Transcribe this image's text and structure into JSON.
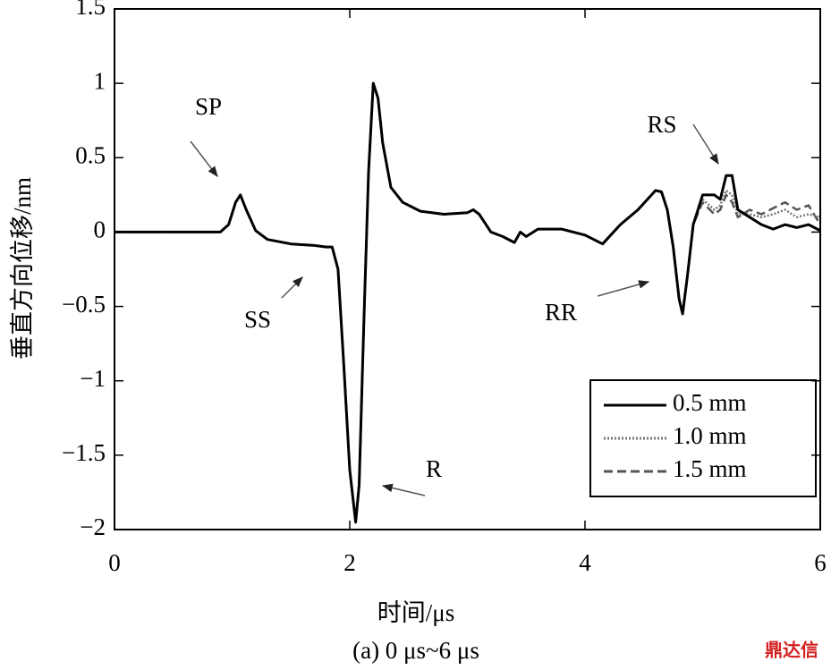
{
  "chart_data": {
    "type": "line",
    "xlabel": "时间/μs",
    "ylabel": "垂直方向位移/nm",
    "caption": "(a) 0 μs~6 μs",
    "watermark": "鼎达信",
    "x": [
      0,
      0.5,
      0.9,
      0.97,
      1.03,
      1.07,
      1.12,
      1.2,
      1.3,
      1.5,
      1.7,
      1.8,
      1.85,
      1.9,
      1.95,
      2.0,
      2.05,
      2.08,
      2.12,
      2.16,
      2.2,
      2.24,
      2.28,
      2.35,
      2.45,
      2.6,
      2.8,
      3.0,
      3.05,
      3.1,
      3.2,
      3.3,
      3.4,
      3.45,
      3.5,
      3.6,
      3.8,
      4.0,
      4.15,
      4.3,
      4.45,
      4.6,
      4.65,
      4.7,
      4.75,
      4.8,
      4.83,
      4.87,
      4.92,
      5.0,
      5.1,
      5.15,
      5.2,
      5.25,
      5.3,
      5.4,
      5.5,
      5.6,
      5.7,
      5.8,
      5.9,
      6.0
    ],
    "series": [
      {
        "name": "0.5 mm",
        "color": "#000000",
        "style": "solid",
        "values": [
          0,
          0,
          0,
          0.05,
          0.2,
          0.25,
          0.15,
          0.01,
          -0.05,
          -0.08,
          -0.09,
          -0.1,
          -0.1,
          -0.25,
          -0.9,
          -1.6,
          -1.95,
          -1.7,
          -0.6,
          0.4,
          1.0,
          0.9,
          0.6,
          0.3,
          0.2,
          0.14,
          0.12,
          0.13,
          0.15,
          0.12,
          0,
          -0.03,
          -0.07,
          0,
          -0.03,
          0.02,
          0.02,
          -0.02,
          -0.08,
          0.05,
          0.15,
          0.28,
          0.27,
          0.15,
          -0.1,
          -0.45,
          -0.55,
          -0.3,
          0.05,
          0.25,
          0.25,
          0.22,
          0.38,
          0.38,
          0.15,
          0.1,
          0.05,
          0.02,
          0.05,
          0.03,
          0.05,
          0.01
        ]
      },
      {
        "name": "1.0 mm",
        "color": "#777777",
        "style": "dotted",
        "values": [
          0,
          0,
          0,
          0.05,
          0.2,
          0.25,
          0.15,
          0.01,
          -0.05,
          -0.08,
          -0.09,
          -0.1,
          -0.1,
          -0.25,
          -0.9,
          -1.6,
          -1.95,
          -1.7,
          -0.6,
          0.4,
          1.0,
          0.9,
          0.6,
          0.3,
          0.2,
          0.14,
          0.12,
          0.13,
          0.15,
          0.12,
          0,
          -0.03,
          -0.07,
          0,
          -0.03,
          0.02,
          0.02,
          -0.02,
          -0.08,
          0.05,
          0.15,
          0.28,
          0.27,
          0.15,
          -0.1,
          -0.45,
          -0.55,
          -0.3,
          0.05,
          0.22,
          0.15,
          0.18,
          0.28,
          0.25,
          0.12,
          0.12,
          0.1,
          0.12,
          0.15,
          0.1,
          0.12,
          0.1
        ]
      },
      {
        "name": "1.5 mm",
        "color": "#555555",
        "style": "dashed",
        "values": [
          0,
          0,
          0,
          0.05,
          0.2,
          0.25,
          0.15,
          0.01,
          -0.05,
          -0.08,
          -0.09,
          -0.1,
          -0.1,
          -0.25,
          -0.9,
          -1.6,
          -1.95,
          -1.7,
          -0.6,
          0.4,
          1.0,
          0.9,
          0.6,
          0.3,
          0.2,
          0.14,
          0.12,
          0.13,
          0.15,
          0.12,
          0,
          -0.03,
          -0.07,
          0,
          -0.03,
          0.02,
          0.02,
          -0.02,
          -0.08,
          0.05,
          0.15,
          0.28,
          0.27,
          0.15,
          -0.1,
          -0.45,
          -0.55,
          -0.3,
          0.05,
          0.2,
          0.12,
          0.15,
          0.25,
          0.2,
          0.1,
          0.15,
          0.12,
          0.16,
          0.2,
          0.15,
          0.18,
          0.05
        ]
      }
    ],
    "xlim": [
      0,
      6
    ],
    "xticks": [
      0,
      2,
      4,
      6
    ],
    "ylim": [
      -2,
      1.5
    ],
    "yticks": [
      {
        "value": -2,
        "label": "−2"
      },
      {
        "value": -1.5,
        "label": "−1.5"
      },
      {
        "value": -1,
        "label": "−1"
      },
      {
        "value": -0.5,
        "label": "−0.5"
      },
      0,
      0.5,
      1,
      1.5
    ],
    "legend": "lower right",
    "annotations": [
      {
        "text": "SP"
      },
      {
        "text": "SS"
      },
      {
        "text": "R"
      },
      {
        "text": "RR"
      },
      {
        "text": "RS"
      }
    ]
  }
}
